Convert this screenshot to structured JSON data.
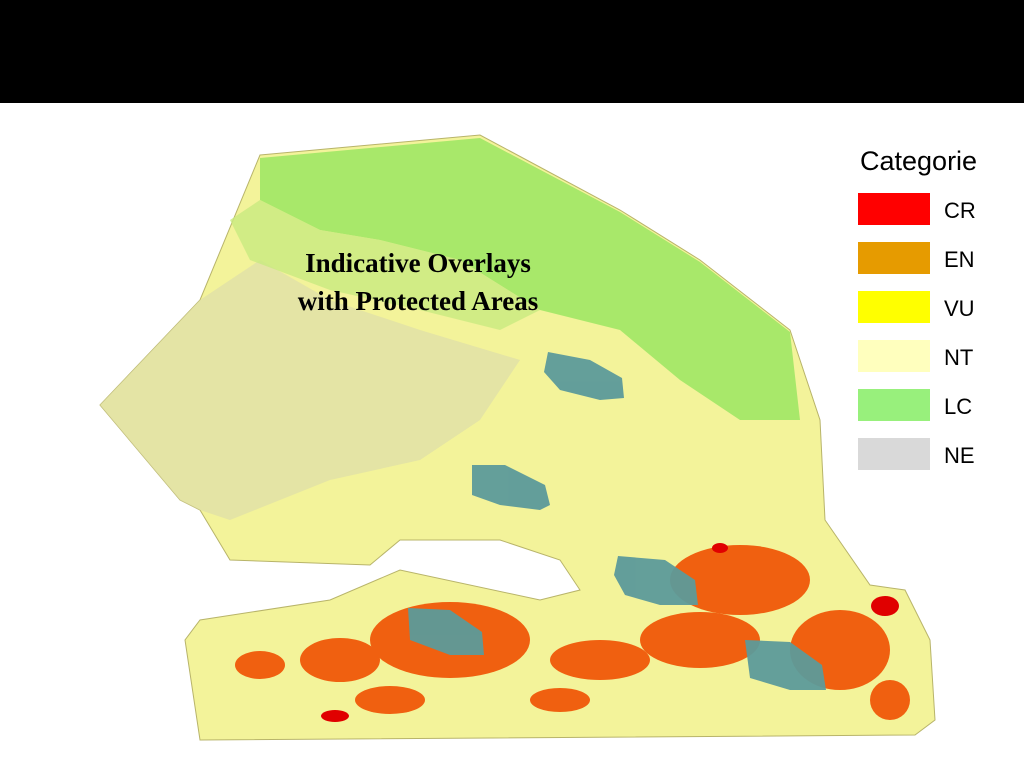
{
  "map": {
    "title_lines": [
      "Indicative Overlays",
      "with Protected Areas"
    ],
    "legend": {
      "title": "Categorie",
      "items": [
        {
          "name": "CR",
          "color": "#ff0000"
        },
        {
          "name": "EN",
          "color": "#e69b00"
        },
        {
          "name": "VU",
          "color": "#ffff00"
        },
        {
          "name": "NT",
          "color": "#ffffbe"
        },
        {
          "name": "LC",
          "color": "#98f07c"
        },
        {
          "name": "NE",
          "color": "#d9d9d9"
        }
      ]
    }
  }
}
